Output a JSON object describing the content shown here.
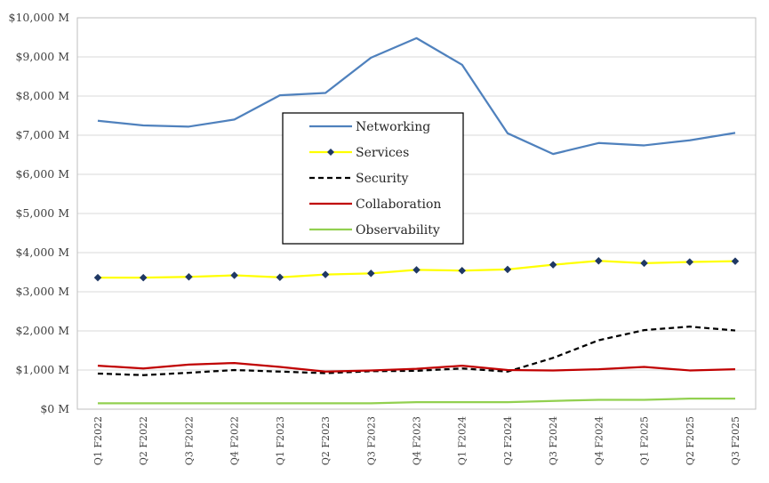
{
  "chart_data": {
    "type": "line",
    "title": "",
    "xlabel": "",
    "ylabel": "",
    "categories": [
      "Q1 F2022",
      "Q2 F2022",
      "Q3 F2022",
      "Q4 F2022",
      "Q1 F2023",
      "Q2 F2023",
      "Q3 F2023",
      "Q4 F2023",
      "Q1 F2024",
      "Q2 F2024",
      "Q3 F2024",
      "Q4 F2024",
      "Q1 F2025",
      "Q2 F2025",
      "Q3 F2025"
    ],
    "y_ticks": [
      "$0 M",
      "$1,000 M",
      "$2,000 M",
      "$3,000 M",
      "$4,000 M",
      "$5,000 M",
      "$6,000 M",
      "$7,000 M",
      "$8,000 M",
      "$9,000 M",
      "$10,000 M"
    ],
    "ylim": [
      0,
      10000
    ],
    "grid": true,
    "legend_position": "center",
    "series": [
      {
        "name": "Networking",
        "color": "#4F81BD",
        "style": "solid",
        "marker": "none",
        "values": [
          7370,
          7250,
          7220,
          7400,
          8020,
          8080,
          8980,
          9480,
          8800,
          7050,
          6520,
          6800,
          6740,
          6870,
          7060
        ]
      },
      {
        "name": "Services",
        "color": "#FFFF00",
        "style": "solid",
        "marker": "diamond",
        "values": [
          3360,
          3360,
          3380,
          3420,
          3370,
          3440,
          3470,
          3560,
          3540,
          3570,
          3690,
          3790,
          3730,
          3760,
          3780
        ]
      },
      {
        "name": "Security",
        "color": "#000000",
        "style": "dashed",
        "marker": "none",
        "values": [
          910,
          870,
          930,
          1000,
          960,
          920,
          970,
          980,
          1040,
          960,
          1310,
          1760,
          2020,
          2110,
          2010
        ]
      },
      {
        "name": "Collaboration",
        "color": "#C00000",
        "style": "solid",
        "marker": "none",
        "values": [
          1110,
          1040,
          1140,
          1180,
          1080,
          960,
          990,
          1030,
          1110,
          1000,
          990,
          1020,
          1080,
          990,
          1020
        ]
      },
      {
        "name": "Observability",
        "color": "#92D050",
        "style": "solid",
        "marker": "none",
        "values": [
          150,
          150,
          150,
          150,
          150,
          150,
          150,
          180,
          180,
          180,
          210,
          240,
          240,
          270,
          270
        ]
      }
    ]
  }
}
